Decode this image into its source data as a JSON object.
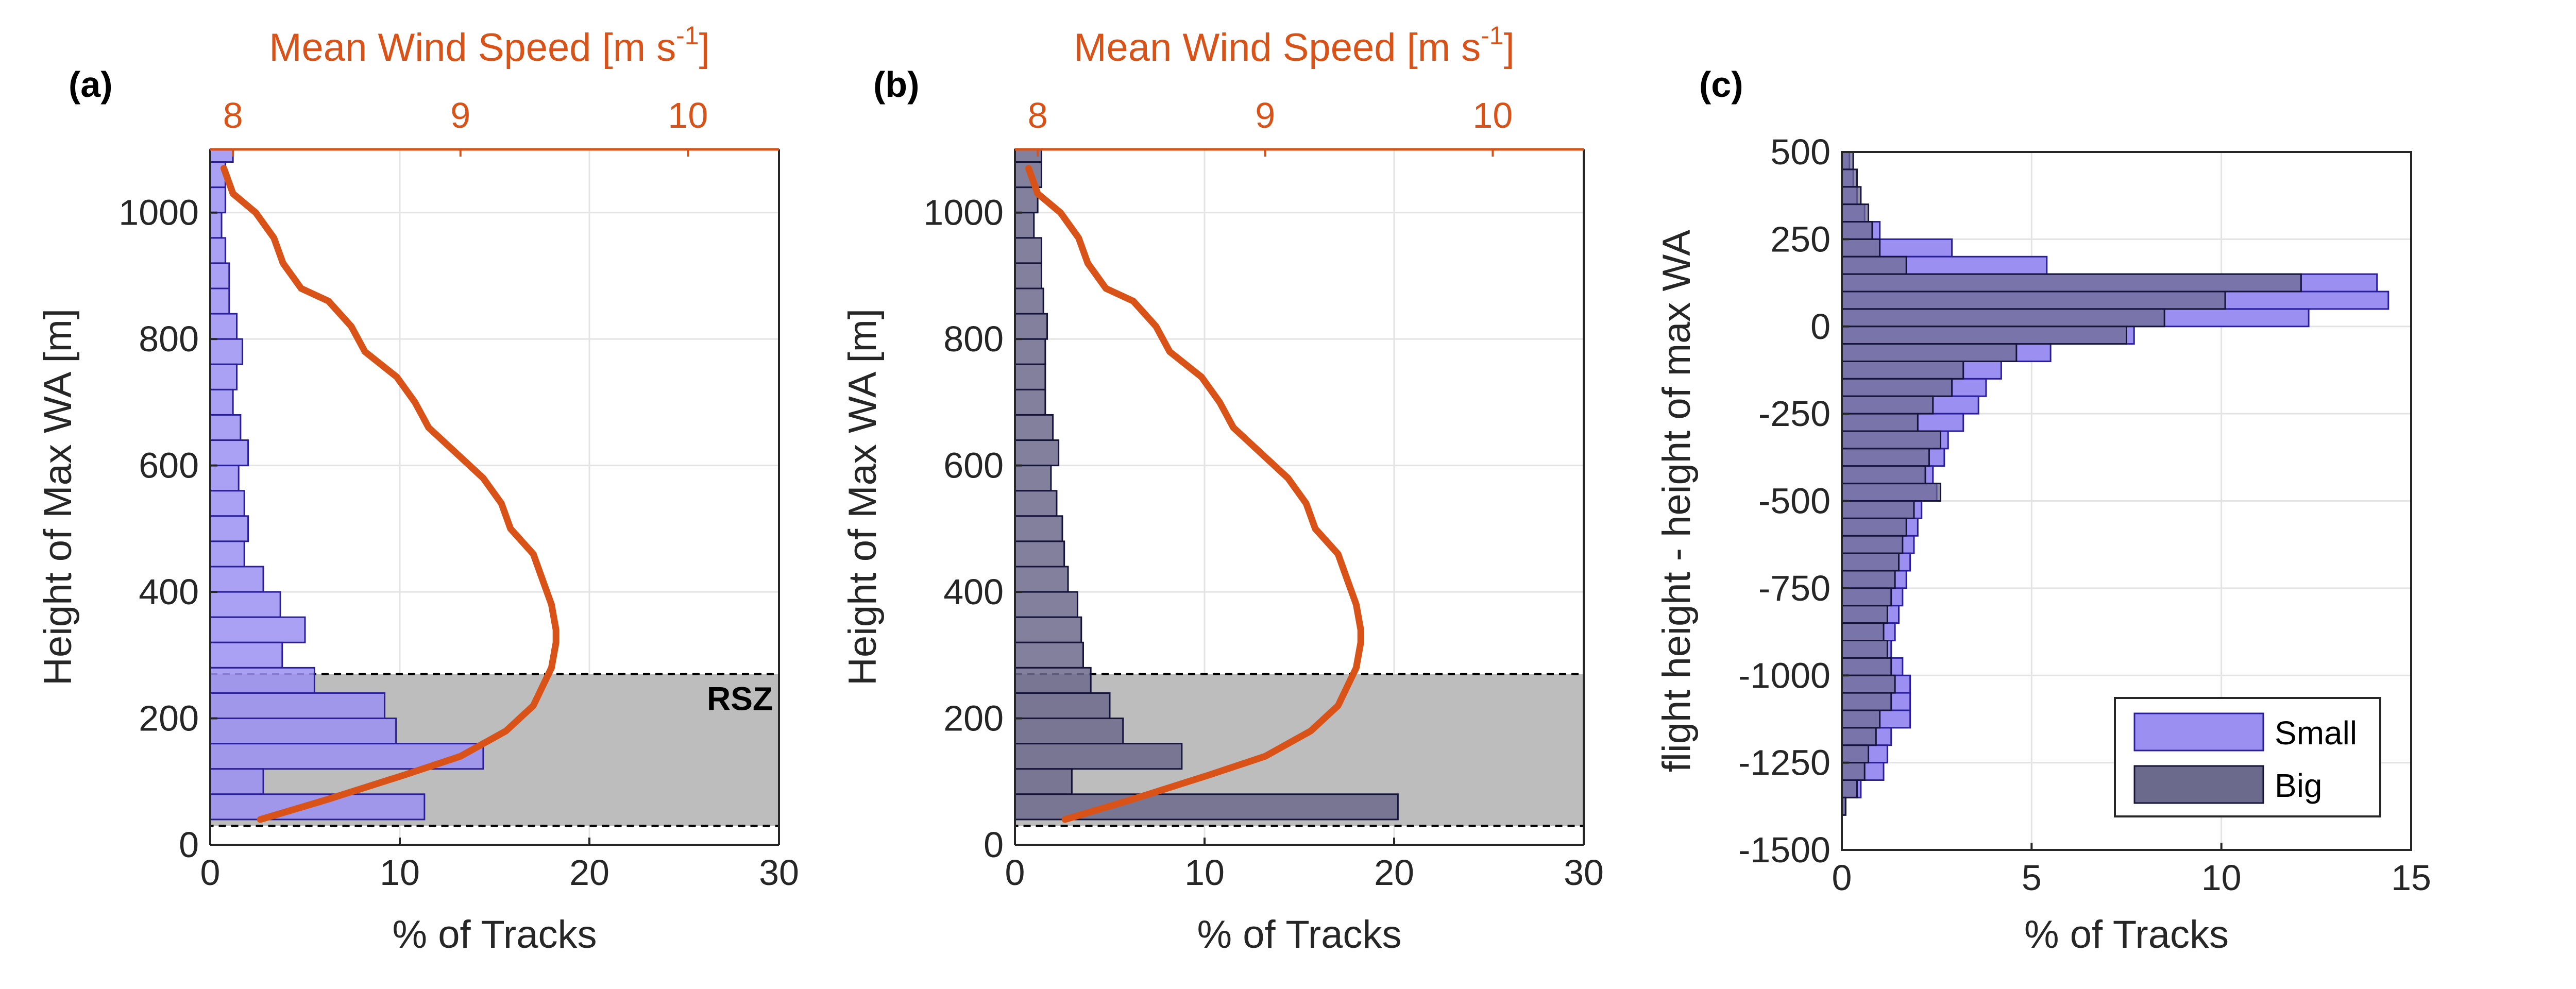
{
  "colors": {
    "small": "#9B8FF2",
    "small_edge": "#2A1F9A",
    "big": "#6C6A8C",
    "big_edge": "#15143A",
    "overlap": "#3D3A78",
    "wind": "#D95319",
    "rsz_fill": "#BDBDBD",
    "grid": "#E3E3E3",
    "axis": "#262626"
  },
  "chart_data": [
    {
      "panel_label": "(a)",
      "type": "bar",
      "orientation": "horizontal",
      "group": "Small",
      "xlabel": "% of Tracks",
      "ylabel": "Height of Max WA [m]",
      "top_xlabel": "Mean Wind Speed [m s-1]",
      "top_xlabel_main": "Mean Wind Speed [m s",
      "top_xlabel_sup": "-1",
      "top_xlabel_close": "]",
      "xlim": [
        0,
        30
      ],
      "ylim": [
        0,
        1100
      ],
      "xticks": [
        0,
        10,
        20,
        30
      ],
      "yticks": [
        0,
        200,
        400,
        600,
        800,
        1000
      ],
      "top_xlim": [
        7.9,
        10.4
      ],
      "top_xticks": [
        8,
        9,
        10
      ],
      "bin_width": 40,
      "bins_start": [
        1080,
        1040,
        1000,
        960,
        920,
        880,
        840,
        800,
        760,
        720,
        680,
        640,
        600,
        560,
        520,
        480,
        440,
        400,
        360,
        320,
        280,
        240,
        200,
        160,
        120,
        80,
        40
      ],
      "values": [
        1.2,
        0.8,
        0.8,
        0.6,
        0.8,
        1.0,
        1.0,
        1.4,
        1.7,
        1.4,
        1.2,
        1.6,
        2.0,
        1.5,
        1.8,
        2.0,
        1.8,
        2.8,
        3.7,
        5.0,
        3.8,
        5.5,
        9.2,
        9.8,
        14.4,
        2.8,
        11.3
      ],
      "rsz": {
        "label": "RSZ",
        "y_from": 30,
        "y_to": 270
      },
      "wind_profile": {
        "name": "Mean Wind Speed",
        "speed": [
          7.96,
          8.0,
          8.1,
          8.18,
          8.22,
          8.3,
          8.42,
          8.52,
          8.58,
          8.72,
          8.8,
          8.86,
          8.98,
          9.1,
          9.18,
          9.22,
          9.32,
          9.36,
          9.4,
          9.42,
          9.42,
          9.4,
          9.32,
          9.2,
          9.0,
          8.75,
          8.4,
          8.12
        ],
        "height": [
          1070,
          1030,
          1000,
          960,
          920,
          880,
          860,
          820,
          780,
          740,
          700,
          660,
          620,
          580,
          540,
          500,
          460,
          420,
          380,
          340,
          320,
          280,
          220,
          180,
          140,
          110,
          70,
          40
        ]
      }
    },
    {
      "panel_label": "(b)",
      "type": "bar",
      "orientation": "horizontal",
      "group": "Big",
      "xlabel": "% of Tracks",
      "ylabel": "Height of Max WA [m]",
      "top_xlabel": "Mean Wind Speed [m s-1]",
      "top_xlabel_main": "Mean Wind Speed [m s",
      "top_xlabel_sup": "-1",
      "top_xlabel_close": "]",
      "xlim": [
        0,
        30
      ],
      "ylim": [
        0,
        1100
      ],
      "xticks": [
        0,
        10,
        20,
        30
      ],
      "yticks": [
        0,
        200,
        400,
        600,
        800,
        1000
      ],
      "top_xlim": [
        7.9,
        10.4
      ],
      "top_xticks": [
        8,
        9,
        10
      ],
      "bin_width": 40,
      "bins_start": [
        1080,
        1040,
        1000,
        960,
        920,
        880,
        840,
        800,
        760,
        720,
        680,
        640,
        600,
        560,
        520,
        480,
        440,
        400,
        360,
        320,
        280,
        240,
        200,
        160,
        120,
        80,
        40
      ],
      "values": [
        1.4,
        1.4,
        1.2,
        1.0,
        1.4,
        1.4,
        1.5,
        1.7,
        1.6,
        1.6,
        1.6,
        2.0,
        2.3,
        1.9,
        2.2,
        2.5,
        2.6,
        2.8,
        3.3,
        3.5,
        3.6,
        4.0,
        5.0,
        5.7,
        8.8,
        3.0,
        20.2
      ],
      "rsz": {
        "label": "",
        "y_from": 30,
        "y_to": 270
      },
      "wind_profile": {
        "name": "Mean Wind Speed",
        "speed": [
          7.96,
          8.0,
          8.1,
          8.18,
          8.22,
          8.3,
          8.42,
          8.52,
          8.58,
          8.72,
          8.8,
          8.86,
          8.98,
          9.1,
          9.18,
          9.22,
          9.32,
          9.36,
          9.4,
          9.42,
          9.42,
          9.4,
          9.32,
          9.2,
          9.0,
          8.75,
          8.4,
          8.12
        ],
        "height": [
          1070,
          1030,
          1000,
          960,
          920,
          880,
          860,
          820,
          780,
          740,
          700,
          660,
          620,
          580,
          540,
          500,
          460,
          420,
          380,
          340,
          320,
          280,
          220,
          180,
          140,
          110,
          70,
          40
        ]
      }
    },
    {
      "panel_label": "(c)",
      "type": "bar",
      "orientation": "horizontal",
      "xlabel": "% of Tracks",
      "ylabel": "flight height - height of max WA",
      "xlim": [
        0,
        15
      ],
      "ylim": [
        -1500,
        500
      ],
      "xticks": [
        0,
        5,
        10,
        15
      ],
      "yticks": [
        500,
        250,
        0,
        -250,
        -500,
        -750,
        -1000,
        -1250,
        -1500
      ],
      "bin_width": 50,
      "bins_start": [
        450,
        400,
        350,
        300,
        250,
        200,
        150,
        100,
        50,
        0,
        -50,
        -100,
        -150,
        -200,
        -250,
        -300,
        -350,
        -400,
        -450,
        -500,
        -550,
        -600,
        -650,
        -700,
        -750,
        -800,
        -850,
        -900,
        -950,
        -1000,
        -1050,
        -1100,
        -1150,
        -1200,
        -1250,
        -1300,
        -1350,
        -1400,
        -1450,
        -1500
      ],
      "legend": {
        "position": "bottom-right",
        "entries": [
          "Small",
          "Big"
        ]
      },
      "series": [
        {
          "name": "Small",
          "values": [
            0.2,
            0.3,
            0.4,
            0.6,
            1.0,
            2.9,
            5.4,
            14.1,
            14.4,
            12.3,
            7.7,
            5.5,
            4.2,
            3.8,
            3.6,
            3.2,
            2.8,
            2.7,
            2.4,
            2.5,
            2.1,
            2.0,
            1.9,
            1.8,
            1.7,
            1.6,
            1.5,
            1.4,
            1.3,
            1.6,
            1.8,
            1.8,
            1.8,
            1.3,
            1.2,
            1.1,
            0.5,
            0.1,
            0,
            0
          ]
        },
        {
          "name": "Big",
          "values": [
            0.3,
            0.4,
            0.5,
            0.7,
            0.8,
            1.0,
            1.7,
            12.1,
            10.1,
            8.5,
            7.5,
            4.6,
            3.2,
            2.9,
            2.4,
            2.0,
            2.6,
            2.3,
            2.2,
            2.6,
            1.9,
            1.7,
            1.6,
            1.5,
            1.4,
            1.3,
            1.2,
            1.1,
            1.2,
            1.3,
            1.4,
            1.3,
            1.0,
            0.9,
            0.7,
            0.6,
            0.4,
            0.1,
            0,
            0
          ]
        }
      ]
    }
  ]
}
